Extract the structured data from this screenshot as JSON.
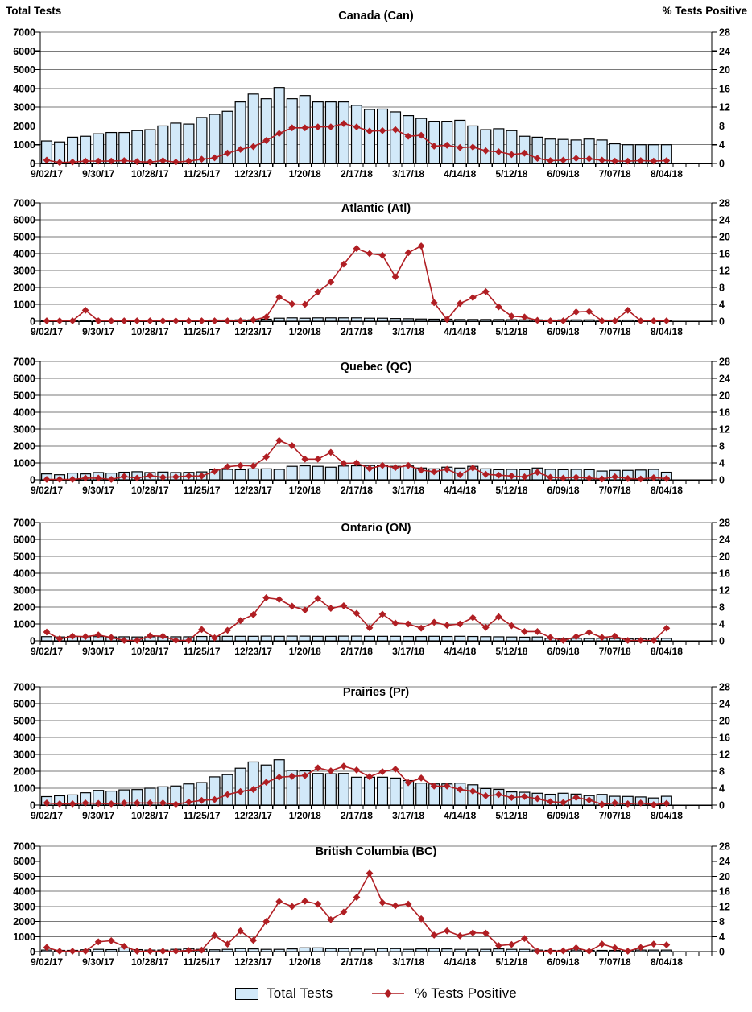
{
  "page": {
    "left_axis_title": "Total Tests",
    "right_axis_title": "%  Tests Positive"
  },
  "legend": {
    "bar_label": "Total Tests",
    "line_label": "% Tests Positive"
  },
  "colors": {
    "bar_fill": "#d2e9f9",
    "bar_border": "#000000",
    "line": "#b01e23",
    "grid": "#7a7a7a",
    "axis": "#000000"
  },
  "chart_data": {
    "type": "bar",
    "subtype": "combo-bar-line-dual-axis",
    "x": [
      "9/02/17",
      "9/09/17",
      "9/16/17",
      "9/23/17",
      "9/30/17",
      "10/07/17",
      "10/14/17",
      "10/21/17",
      "10/28/17",
      "11/04/17",
      "11/11/17",
      "11/18/17",
      "11/25/17",
      "12/02/17",
      "12/09/17",
      "12/16/17",
      "12/23/17",
      "12/30/17",
      "1/06/18",
      "1/13/18",
      "1/20/18",
      "1/27/18",
      "2/03/18",
      "2/10/18",
      "2/17/18",
      "2/24/18",
      "3/03/18",
      "3/10/18",
      "3/17/18",
      "3/24/18",
      "3/31/18",
      "4/07/18",
      "4/14/18",
      "4/21/18",
      "4/28/18",
      "5/05/18",
      "5/12/18",
      "5/19/18",
      "5/26/18",
      "6/02/18",
      "6/09/18",
      "6/16/18",
      "6/23/18",
      "6/30/18",
      "7/07/18",
      "7/14/18",
      "7/21/18",
      "7/28/18",
      "8/04/18"
    ],
    "x_tick_labels": [
      "9/02/17",
      "9/30/17",
      "10/28/17",
      "11/25/17",
      "12/23/17",
      "1/20/18",
      "2/17/18",
      "3/17/18",
      "4/14/18",
      "5/12/18",
      "6/09/18",
      "7/07/18",
      "8/04/18"
    ],
    "left_axis": {
      "title": "Total Tests",
      "min": 0,
      "max": 7000,
      "ticks": [
        0,
        1000,
        2000,
        3000,
        4000,
        5000,
        6000,
        7000
      ]
    },
    "right_axis": {
      "title": "%  Tests Positive",
      "min": 0,
      "max": 28,
      "ticks": [
        0,
        4,
        8,
        12,
        16,
        20,
        24,
        28
      ]
    },
    "grid": true,
    "legend_position": "bottom",
    "series_names": [
      "Total Tests",
      "% Tests Positive"
    ],
    "panels": [
      {
        "title": "Canada (Can)",
        "abbr": "Can",
        "total_tests": [
          1200,
          1150,
          1400,
          1450,
          1580,
          1650,
          1650,
          1750,
          1800,
          2000,
          2150,
          2100,
          2450,
          2620,
          2780,
          3280,
          3700,
          3450,
          4050,
          3450,
          3620,
          3280,
          3280,
          3280,
          3100,
          2880,
          2900,
          2750,
          2550,
          2400,
          2250,
          2250,
          2300,
          2000,
          1800,
          1850,
          1750,
          1450,
          1400,
          1300,
          1280,
          1250,
          1300,
          1250,
          1050,
          1000,
          1000,
          1000,
          1000
        ],
        "pct_positive": [
          0.7,
          0.2,
          0.3,
          0.5,
          0.5,
          0.5,
          0.6,
          0.4,
          0.3,
          0.6,
          0.3,
          0.5,
          0.9,
          1.2,
          2.2,
          3.0,
          3.6,
          4.9,
          6.4,
          7.6,
          7.6,
          7.8,
          7.8,
          8.5,
          7.8,
          6.9,
          7.0,
          7.2,
          5.8,
          6.0,
          3.7,
          3.9,
          3.4,
          3.5,
          2.7,
          2.5,
          1.9,
          2.2,
          1.1,
          0.6,
          0.7,
          1.1,
          1.0,
          0.7,
          0.5,
          0.5,
          0.6,
          0.5,
          0.6
        ]
      },
      {
        "title": "Atlantic (Atl)",
        "abbr": "Atl",
        "total_tests": [
          60,
          60,
          60,
          60,
          60,
          60,
          60,
          60,
          60,
          60,
          60,
          60,
          60,
          70,
          70,
          80,
          80,
          120,
          180,
          200,
          180,
          200,
          200,
          200,
          200,
          180,
          180,
          160,
          150,
          130,
          120,
          120,
          100,
          100,
          100,
          100,
          90,
          80,
          80,
          70,
          80,
          80,
          80,
          70,
          70,
          70,
          60,
          60,
          60
        ],
        "pct_positive": [
          0.1,
          0.1,
          0.1,
          2.6,
          0.1,
          0.1,
          0.1,
          0.1,
          0.1,
          0.1,
          0.1,
          0.1,
          0.1,
          0.1,
          0.1,
          0.1,
          0.3,
          1.0,
          5.7,
          4.1,
          4.0,
          6.9,
          9.3,
          13.5,
          17.2,
          16.0,
          15.6,
          10.5,
          16.2,
          17.8,
          4.4,
          0.4,
          4.2,
          5.6,
          7.0,
          3.4,
          1.2,
          1.0,
          0.2,
          0.1,
          0.1,
          2.2,
          2.3,
          0.1,
          0.1,
          2.6,
          0.1,
          0.1,
          0.1
        ]
      },
      {
        "title": "Quebec (QC)",
        "abbr": "QC",
        "total_tests": [
          350,
          300,
          400,
          350,
          430,
          400,
          450,
          480,
          430,
          460,
          430,
          440,
          470,
          600,
          620,
          600,
          650,
          650,
          620,
          800,
          830,
          800,
          750,
          820,
          830,
          850,
          850,
          800,
          820,
          700,
          650,
          750,
          700,
          800,
          650,
          600,
          620,
          600,
          700,
          620,
          600,
          620,
          600,
          520,
          560,
          560,
          580,
          620,
          450
        ],
        "pct_positive": [
          0.1,
          0.1,
          0.1,
          0.4,
          0.4,
          0.1,
          0.8,
          0.4,
          1.0,
          0.6,
          0.7,
          0.9,
          0.9,
          2.0,
          3.1,
          3.4,
          3.3,
          5.4,
          9.3,
          8.1,
          4.9,
          4.9,
          6.5,
          3.9,
          4.0,
          2.7,
          3.4,
          2.9,
          3.4,
          2.3,
          1.9,
          2.5,
          1.2,
          2.8,
          1.3,
          1.1,
          0.9,
          0.7,
          1.8,
          0.6,
          0.4,
          0.6,
          0.4,
          0.2,
          0.7,
          0.3,
          0.2,
          0.5,
          0.3
        ]
      },
      {
        "title": "Ontario (ON)",
        "abbr": "ON",
        "total_tests": [
          250,
          230,
          260,
          240,
          250,
          230,
          240,
          230,
          240,
          250,
          240,
          240,
          260,
          270,
          270,
          270,
          270,
          280,
          270,
          280,
          280,
          270,
          270,
          280,
          280,
          270,
          270,
          270,
          260,
          260,
          270,
          260,
          270,
          260,
          250,
          240,
          230,
          220,
          230,
          150,
          140,
          150,
          140,
          150,
          140,
          130,
          130,
          140,
          150
        ],
        "pct_positive": [
          2.1,
          0.5,
          1.1,
          1.0,
          1.4,
          0.8,
          0.1,
          0.1,
          1.2,
          1.1,
          0.1,
          0.1,
          2.7,
          0.7,
          2.5,
          4.8,
          6.2,
          10.2,
          9.8,
          8.2,
          7.3,
          10.0,
          7.7,
          8.3,
          6.5,
          3.1,
          6.3,
          4.2,
          4.0,
          3.0,
          4.4,
          3.7,
          4.0,
          5.5,
          3.2,
          5.7,
          3.6,
          2.2,
          2.2,
          0.8,
          0.1,
          1.0,
          2.0,
          0.8,
          1.1,
          0.1,
          0.1,
          0.1,
          3.0
        ]
      },
      {
        "title": "Prairies (Pr)",
        "abbr": "Pr",
        "total_tests": [
          500,
          550,
          600,
          730,
          870,
          830,
          900,
          920,
          1000,
          1080,
          1130,
          1250,
          1330,
          1670,
          1800,
          2180,
          2550,
          2370,
          2680,
          2050,
          2020,
          1870,
          1850,
          1870,
          1650,
          1650,
          1650,
          1600,
          1450,
          1300,
          1250,
          1250,
          1300,
          1200,
          980,
          930,
          780,
          760,
          700,
          640,
          700,
          650,
          560,
          630,
          520,
          510,
          480,
          420,
          520
        ],
        "pct_positive": [
          0.5,
          0.3,
          0.3,
          0.5,
          0.4,
          0.3,
          0.5,
          0.5,
          0.5,
          0.5,
          0.2,
          0.7,
          1.1,
          1.3,
          2.5,
          3.2,
          3.7,
          5.4,
          6.6,
          6.8,
          7.0,
          8.8,
          8.1,
          9.2,
          8.3,
          6.7,
          7.9,
          8.5,
          5.3,
          6.4,
          4.5,
          4.5,
          3.7,
          3.3,
          2.2,
          2.5,
          1.8,
          2.0,
          1.5,
          0.8,
          0.6,
          1.8,
          1.2,
          0.2,
          0.5,
          0.3,
          0.5,
          0.1,
          0.4
        ]
      },
      {
        "title": "British Columbia (BC)",
        "abbr": "BC",
        "total_tests": [
          100,
          80,
          80,
          120,
          150,
          130,
          250,
          130,
          100,
          100,
          150,
          200,
          150,
          120,
          150,
          200,
          180,
          150,
          150,
          180,
          250,
          250,
          200,
          200,
          180,
          150,
          200,
          200,
          150,
          180,
          200,
          180,
          150,
          150,
          150,
          180,
          150,
          150,
          100,
          80,
          80,
          100,
          80,
          80,
          80,
          80,
          100,
          100,
          100
        ],
        "pct_positive": [
          1.1,
          0.1,
          0.1,
          0.1,
          2.6,
          2.9,
          1.4,
          0.1,
          0.1,
          0.1,
          0.1,
          0.3,
          0.4,
          4.3,
          2.0,
          5.5,
          3.0,
          8.0,
          13.3,
          12.0,
          13.4,
          12.6,
          8.5,
          10.5,
          14.4,
          20.8,
          13.0,
          12.2,
          12.6,
          8.7,
          4.4,
          5.5,
          4.2,
          5.0,
          4.9,
          1.6,
          1.9,
          3.5,
          0.1,
          0.1,
          0.2,
          1.0,
          0.1,
          2.0,
          1.0,
          0.1,
          1.1,
          2.0,
          1.8
        ]
      }
    ]
  }
}
